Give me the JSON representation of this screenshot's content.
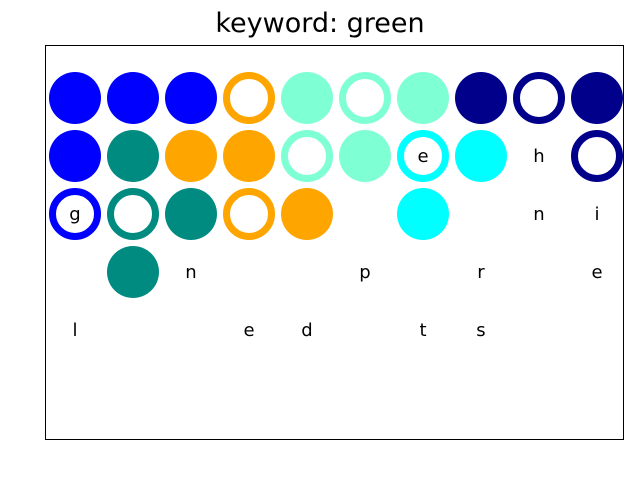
{
  "title": "keyword: green",
  "palette": {
    "blue": "#0000ff",
    "navy": "#00008b",
    "teal": "#008b80",
    "orange": "#ffa500",
    "aquamarine": "#7fffd4",
    "cyan": "#00ffff"
  },
  "cells": [
    {
      "row": 0,
      "col": 0,
      "color": "blue",
      "style": "solid",
      "letter": ""
    },
    {
      "row": 0,
      "col": 1,
      "color": "blue",
      "style": "solid",
      "letter": ""
    },
    {
      "row": 0,
      "col": 2,
      "color": "blue",
      "style": "solid",
      "letter": ""
    },
    {
      "row": 0,
      "col": 3,
      "color": "orange",
      "style": "ring",
      "letter": ""
    },
    {
      "row": 0,
      "col": 4,
      "color": "aquamarine",
      "style": "solid",
      "letter": ""
    },
    {
      "row": 0,
      "col": 5,
      "color": "aquamarine",
      "style": "ring",
      "letter": ""
    },
    {
      "row": 0,
      "col": 6,
      "color": "aquamarine",
      "style": "solid",
      "letter": ""
    },
    {
      "row": 0,
      "col": 7,
      "color": "navy",
      "style": "solid",
      "letter": ""
    },
    {
      "row": 0,
      "col": 8,
      "color": "navy",
      "style": "ring",
      "letter": ""
    },
    {
      "row": 0,
      "col": 9,
      "color": "navy",
      "style": "solid",
      "letter": ""
    },
    {
      "row": 1,
      "col": 0,
      "color": "blue",
      "style": "solid",
      "letter": ""
    },
    {
      "row": 1,
      "col": 1,
      "color": "teal",
      "style": "solid",
      "letter": ""
    },
    {
      "row": 1,
      "col": 2,
      "color": "orange",
      "style": "solid",
      "letter": ""
    },
    {
      "row": 1,
      "col": 3,
      "color": "orange",
      "style": "solid",
      "letter": ""
    },
    {
      "row": 1,
      "col": 4,
      "color": "aquamarine",
      "style": "ring",
      "letter": ""
    },
    {
      "row": 1,
      "col": 5,
      "color": "aquamarine",
      "style": "solid",
      "letter": ""
    },
    {
      "row": 1,
      "col": 6,
      "color": "cyan",
      "style": "ring",
      "letter": "e"
    },
    {
      "row": 1,
      "col": 7,
      "color": "cyan",
      "style": "solid",
      "letter": ""
    },
    {
      "row": 1,
      "col": 8,
      "color": "",
      "style": "none",
      "letter": "h"
    },
    {
      "row": 1,
      "col": 9,
      "color": "navy",
      "style": "ring",
      "letter": ""
    },
    {
      "row": 2,
      "col": 0,
      "color": "blue",
      "style": "ring",
      "letter": "g"
    },
    {
      "row": 2,
      "col": 1,
      "color": "teal",
      "style": "ring",
      "letter": ""
    },
    {
      "row": 2,
      "col": 2,
      "color": "teal",
      "style": "solid",
      "letter": ""
    },
    {
      "row": 2,
      "col": 3,
      "color": "orange",
      "style": "ring",
      "letter": ""
    },
    {
      "row": 2,
      "col": 4,
      "color": "orange",
      "style": "solid",
      "letter": ""
    },
    {
      "row": 2,
      "col": 6,
      "color": "cyan",
      "style": "solid",
      "letter": ""
    },
    {
      "row": 2,
      "col": 8,
      "color": "",
      "style": "none",
      "letter": "n"
    },
    {
      "row": 2,
      "col": 9,
      "color": "",
      "style": "none",
      "letter": "i"
    },
    {
      "row": 3,
      "col": 1,
      "color": "teal",
      "style": "solid",
      "letter": ""
    },
    {
      "row": 3,
      "col": 2,
      "color": "",
      "style": "none",
      "letter": "n"
    },
    {
      "row": 3,
      "col": 5,
      "color": "",
      "style": "none",
      "letter": "p"
    },
    {
      "row": 3,
      "col": 7,
      "color": "",
      "style": "none",
      "letter": "r"
    },
    {
      "row": 3,
      "col": 9,
      "color": "",
      "style": "none",
      "letter": "e"
    },
    {
      "row": 4,
      "col": 0,
      "color": "",
      "style": "none",
      "letter": "l"
    },
    {
      "row": 4,
      "col": 3,
      "color": "",
      "style": "none",
      "letter": "e"
    },
    {
      "row": 4,
      "col": 4,
      "color": "",
      "style": "none",
      "letter": "d"
    },
    {
      "row": 4,
      "col": 6,
      "color": "",
      "style": "none",
      "letter": "t"
    },
    {
      "row": 4,
      "col": 7,
      "color": "",
      "style": "none",
      "letter": "s"
    }
  ]
}
